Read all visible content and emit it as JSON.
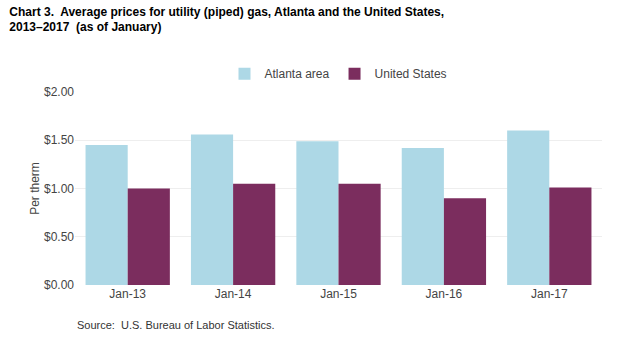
{
  "chart_data": {
    "type": "bar",
    "title": "Chart 3.  Average prices for utility (piped) gas, Atlanta and the United States,",
    "subtitle": "2013–2017  (as of January)",
    "y_label": "Per therm",
    "annotations": [
      "Source:  U.S. Bureau of Labor Statistics."
    ],
    "categories": [
      "Jan-13",
      "Jan-14",
      "Jan-15",
      "Jan-16",
      "Jan-17"
    ],
    "series": [
      {
        "name": "Atlanta area",
        "color": "#ADD8E6",
        "values": [
          1.45,
          1.56,
          1.49,
          1.42,
          1.6
        ]
      },
      {
        "name": "United States",
        "color": "#7B2D5E",
        "values": [
          1.0,
          1.05,
          1.05,
          0.9,
          1.01
        ]
      }
    ],
    "ylim": [
      0.0,
      2.0
    ],
    "yticks": [
      {
        "value": 0.0,
        "label": "$0.00"
      },
      {
        "value": 0.5,
        "label": "$0.50"
      },
      {
        "value": 1.0,
        "label": "$1.00"
      },
      {
        "value": 1.5,
        "label": "$1.50"
      },
      {
        "value": 2.0,
        "label": "$2.00"
      }
    ],
    "grid": true,
    "legend": "top"
  }
}
